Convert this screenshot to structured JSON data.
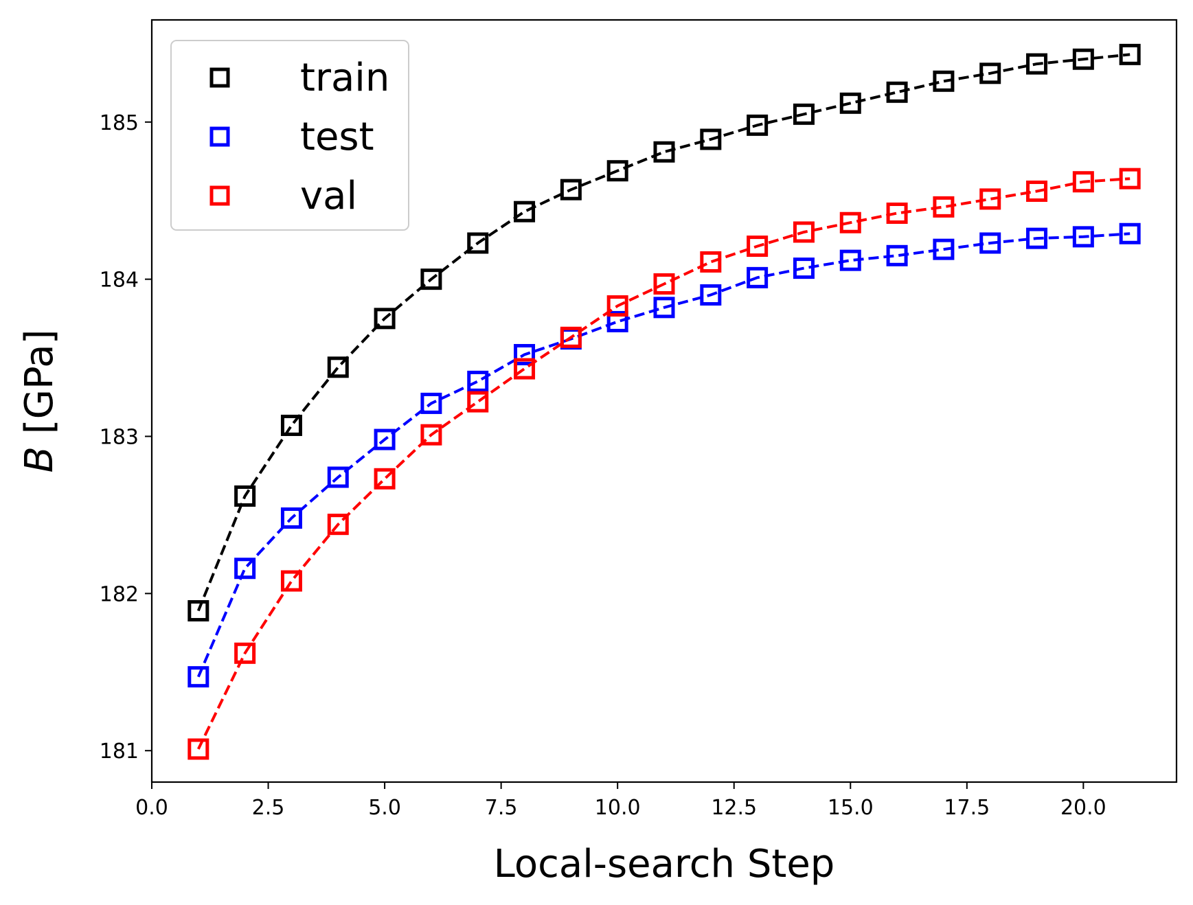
{
  "chart_data": {
    "type": "line",
    "xlabel": "Local-search Step",
    "ylabel_symbol": "B",
    "ylabel_unit": " [GPa]",
    "xlim": [
      0,
      22
    ],
    "ylim": [
      180.8,
      185.65
    ],
    "xticks": [
      0.0,
      2.5,
      5.0,
      7.5,
      10.0,
      12.5,
      15.0,
      17.5,
      20.0
    ],
    "xtick_labels": [
      "0.0",
      "2.5",
      "5.0",
      "7.5",
      "10.0",
      "12.5",
      "15.0",
      "17.5",
      "20.0"
    ],
    "yticks": [
      181,
      182,
      183,
      184,
      185
    ],
    "ytick_labels": [
      "181",
      "182",
      "183",
      "184",
      "185"
    ],
    "legend_position": "top-left",
    "grid": false,
    "x": [
      1,
      2,
      3,
      4,
      5,
      6,
      7,
      8,
      9,
      10,
      11,
      12,
      13,
      14,
      15,
      16,
      17,
      18,
      19,
      20,
      21
    ],
    "series": [
      {
        "name": "train",
        "color": "#000000",
        "values": [
          181.89,
          182.62,
          183.07,
          183.44,
          183.75,
          184.0,
          184.23,
          184.43,
          184.57,
          184.69,
          184.81,
          184.89,
          184.98,
          185.05,
          185.12,
          185.19,
          185.26,
          185.31,
          185.37,
          185.4,
          185.43
        ]
      },
      {
        "name": "test",
        "color": "#0000ff",
        "values": [
          181.47,
          182.16,
          182.48,
          182.74,
          182.98,
          183.21,
          183.35,
          183.52,
          183.62,
          183.73,
          183.82,
          183.9,
          184.01,
          184.07,
          184.12,
          184.15,
          184.19,
          184.23,
          184.26,
          184.27,
          184.29
        ]
      },
      {
        "name": "val",
        "color": "#ff0000",
        "values": [
          181.01,
          181.62,
          182.08,
          182.44,
          182.73,
          183.01,
          183.22,
          183.43,
          183.63,
          183.83,
          183.97,
          184.11,
          184.21,
          184.3,
          184.36,
          184.42,
          184.46,
          184.51,
          184.56,
          184.62,
          184.64
        ]
      }
    ]
  }
}
